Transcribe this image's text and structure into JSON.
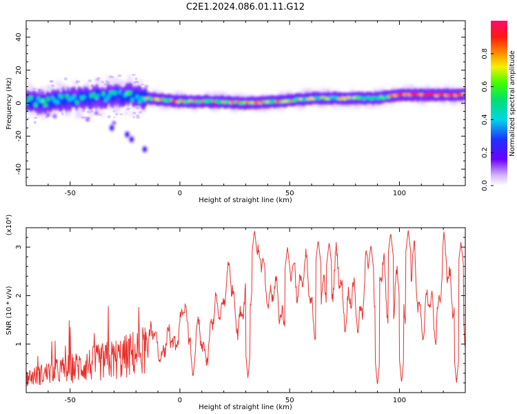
{
  "title": "C2E1.2024.086.01.11.G12",
  "chart_data": [
    {
      "type": "heatmap",
      "xlabel": "Height of straight line (km)",
      "ylabel": "Frequency (Hz)",
      "xlim": [
        -70,
        130
      ],
      "ylim": [
        -50,
        50
      ],
      "xticks": [
        -50,
        0,
        50,
        100
      ],
      "yticks": [
        -40,
        -20,
        0,
        20,
        40
      ],
      "grid": false,
      "colorbar": {
        "label": "Normalized spectral amplitude",
        "range": [
          0,
          1
        ],
        "ticks": [
          "0.0",
          "0.2",
          "0.4",
          "0.6",
          "0.8"
        ],
        "colormap": "rainbow (white, violet, blue, cyan, green, yellow, red, magenta)"
      },
      "ridge": [
        {
          "x": -68,
          "y": 1
        },
        {
          "x": -62,
          "y": 0
        },
        {
          "x": -55,
          "y": 2
        },
        {
          "x": -45,
          "y": 3
        },
        {
          "x": -35,
          "y": 4
        },
        {
          "x": -25,
          "y": 5
        },
        {
          "x": -15,
          "y": 3
        },
        {
          "x": 0,
          "y": 1
        },
        {
          "x": 15,
          "y": 1
        },
        {
          "x": 30,
          "y": 0
        },
        {
          "x": 45,
          "y": 1
        },
        {
          "x": 60,
          "y": 3
        },
        {
          "x": 75,
          "y": 3
        },
        {
          "x": 90,
          "y": 3
        },
        {
          "x": 100,
          "y": 5
        },
        {
          "x": 115,
          "y": 5
        },
        {
          "x": 130,
          "y": 5
        }
      ],
      "secondary_branch": [
        {
          "x": -31,
          "y": -15
        },
        {
          "x": -24,
          "y": -19
        },
        {
          "x": -22,
          "y": -22
        },
        {
          "x": -16,
          "y": -28
        }
      ]
    },
    {
      "type": "line",
      "xlabel": "Height of straight line (km)",
      "ylabel": "SNR (10 * v/v)",
      "y_scale_note": "(x10⁴)",
      "xlim": [
        -70,
        130
      ],
      "ylim": [
        0,
        3.4
      ],
      "xticks": [
        -50,
        0,
        50,
        100
      ],
      "yticks": [
        1,
        2,
        3
      ],
      "color": "#e8302c",
      "grid": false,
      "envelope": [
        {
          "x": -70,
          "y": 0.3
        },
        {
          "x": -55,
          "y": 0.4
        },
        {
          "x": -40,
          "y": 0.5
        },
        {
          "x": -25,
          "y": 0.6
        },
        {
          "x": -18,
          "y": 0.8
        },
        {
          "x": -10,
          "y": 1.0
        },
        {
          "x": 0,
          "y": 1.3
        },
        {
          "x": 10,
          "y": 1.1
        },
        {
          "x": 18,
          "y": 1.6
        },
        {
          "x": 22,
          "y": 2.1
        },
        {
          "x": 28,
          "y": 1.8
        },
        {
          "x": 35,
          "y": 2.3
        },
        {
          "x": 45,
          "y": 2.0
        },
        {
          "x": 55,
          "y": 2.2
        },
        {
          "x": 65,
          "y": 2.0
        },
        {
          "x": 75,
          "y": 2.0
        },
        {
          "x": 85,
          "y": 2.1
        },
        {
          "x": 95,
          "y": 2.2
        },
        {
          "x": 105,
          "y": 2.0
        },
        {
          "x": 115,
          "y": 1.9
        },
        {
          "x": 125,
          "y": 2.2
        },
        {
          "x": 130,
          "y": 2.0
        }
      ],
      "peaks": [
        {
          "x": 34,
          "y": 3.35
        },
        {
          "x": 49,
          "y": 3.0
        },
        {
          "x": 63,
          "y": 3.15
        },
        {
          "x": 68,
          "y": 3.1
        },
        {
          "x": 87,
          "y": 3.05
        },
        {
          "x": 96,
          "y": 3.3
        },
        {
          "x": 104,
          "y": 3.35
        },
        {
          "x": 128,
          "y": 3.1
        }
      ],
      "dips": [
        {
          "x": 6,
          "y": 0.3
        },
        {
          "x": 31,
          "y": 0.3
        },
        {
          "x": 90,
          "y": 0.15
        },
        {
          "x": 101,
          "y": 0.2
        },
        {
          "x": 126,
          "y": 0.2
        }
      ]
    }
  ]
}
